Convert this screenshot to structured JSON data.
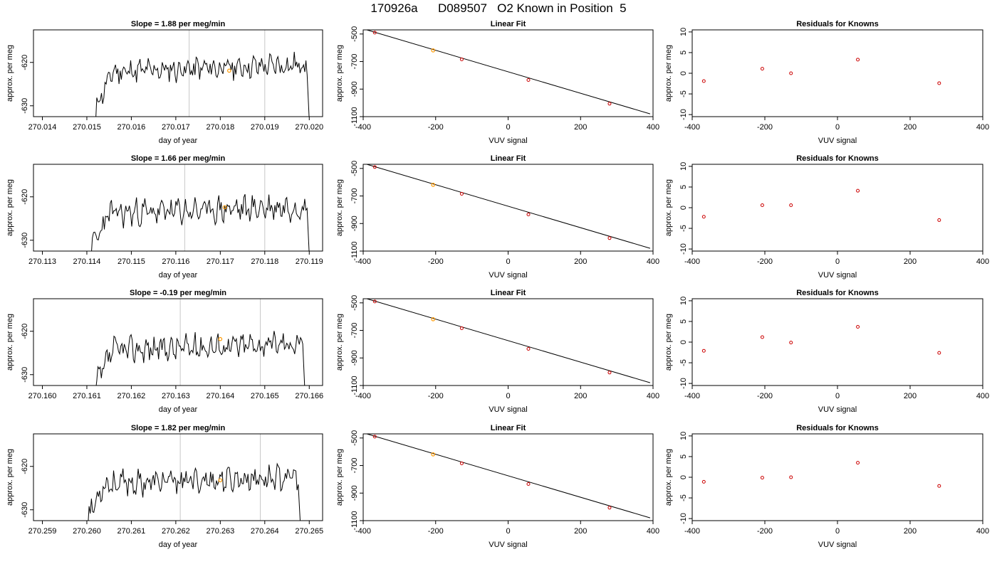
{
  "page_title": "170926a      D089507   O2 Known in Position  5",
  "colors": {
    "line": "#000000",
    "known_point": "#cc0000",
    "highlight_point": "#ff9900",
    "time_marker": "#c8c8c8"
  },
  "chart_data": [
    {
      "type": "line",
      "row": 1,
      "panel": "time-series",
      "title": "Slope =  1.88  per meg/min",
      "xlabel": "day of year",
      "ylabel": "approx. per meg",
      "xlim": [
        270.0138,
        270.0203
      ],
      "ylim": [
        -632.5,
        -612.5
      ],
      "xticks": [
        "270.014",
        "270.015",
        "270.016",
        "270.017",
        "270.018",
        "270.019",
        "270.020"
      ],
      "xtick_values": [
        270.014,
        270.015,
        270.016,
        270.017,
        270.018,
        270.019,
        270.02
      ],
      "yticks": [
        "-620",
        "-630"
      ],
      "ytick_values": [
        -620,
        -630
      ],
      "signal_range": [
        270.0152,
        270.02
      ],
      "signal_base": -622.3,
      "signal_amp": 2.6,
      "seed": 11,
      "vlines": [
        270.0173,
        270.019
      ],
      "highlight": {
        "x": 270.0182,
        "y": -621.9
      }
    },
    {
      "type": "line",
      "row": 1,
      "panel": "linear-fit",
      "title": "Linear Fit",
      "xlabel": "VUV signal",
      "ylabel": "approx. per meg",
      "xlim": [
        -400,
        400
      ],
      "ylim": [
        -1100,
        -470
      ],
      "xticks": [
        "-400",
        "-200",
        "0",
        "200",
        "400"
      ],
      "xtick_values": [
        -400,
        -200,
        0,
        200,
        400
      ],
      "yticks": [
        "-500",
        "-700",
        "-900",
        "-1100"
      ],
      "ytick_values": [
        -500,
        -700,
        -900,
        -1100
      ],
      "points": [
        {
          "x": -368,
          "y": -490
        },
        {
          "x": -128,
          "y": -684
        },
        {
          "x": 56,
          "y": -834
        },
        {
          "x": 280,
          "y": -1006
        }
      ],
      "highlight": {
        "x": -207,
        "y": -619
      },
      "fit_line": [
        {
          "x": -390,
          "y": -470
        },
        {
          "x": 392,
          "y": -1080
        }
      ]
    },
    {
      "type": "scatter",
      "row": 1,
      "panel": "residuals",
      "title": "Residuals for Knowns",
      "xlabel": "VUV signal",
      "ylabel": "approx. per meg",
      "xlim": [
        -400,
        400
      ],
      "ylim": [
        -10.5,
        10.5
      ],
      "xticks": [
        "-400",
        "-200",
        "0",
        "200",
        "400"
      ],
      "xtick_values": [
        -400,
        -200,
        0,
        200,
        400
      ],
      "yticks": [
        "-10",
        "-5",
        "0",
        "5",
        "10"
      ],
      "ytick_values": [
        -10,
        -5,
        0,
        5,
        10
      ],
      "points": [
        {
          "x": -368,
          "y": -1.9
        },
        {
          "x": -207,
          "y": 1.1
        },
        {
          "x": -128,
          "y": 0.0
        },
        {
          "x": 56,
          "y": 3.3
        },
        {
          "x": 280,
          "y": -2.4
        }
      ]
    },
    {
      "type": "line",
      "row": 2,
      "panel": "time-series",
      "title": "Slope =  1.66  per meg/min",
      "xlabel": "day of year",
      "ylabel": "approx. per meg",
      "xlim": [
        270.1128,
        270.1193
      ],
      "ylim": [
        -632.5,
        -612.5
      ],
      "xticks": [
        "270.113",
        "270.114",
        "270.115",
        "270.116",
        "270.117",
        "270.118",
        "270.119"
      ],
      "xtick_values": [
        270.113,
        270.114,
        270.115,
        270.116,
        270.117,
        270.118,
        270.119
      ],
      "yticks": [
        "-620",
        "-630"
      ],
      "ytick_values": [
        -620,
        -630
      ],
      "signal_range": [
        270.1141,
        270.119
      ],
      "signal_base": -624.0,
      "signal_amp": 2.9,
      "seed": 23,
      "vlines": [
        270.1162,
        270.118
      ],
      "highlight": {
        "x": 270.1171,
        "y": -622.4
      }
    },
    {
      "type": "line",
      "row": 2,
      "panel": "linear-fit",
      "title": "Linear Fit",
      "xlabel": "VUV signal",
      "ylabel": "approx. per meg",
      "xlim": [
        -400,
        400
      ],
      "ylim": [
        -1100,
        -470
      ],
      "xticks": [
        "-400",
        "-200",
        "0",
        "200",
        "400"
      ],
      "xtick_values": [
        -400,
        -200,
        0,
        200,
        400
      ],
      "yticks": [
        "-500",
        "-700",
        "-900",
        "-1100"
      ],
      "ytick_values": [
        -500,
        -700,
        -900,
        -1100
      ],
      "points": [
        {
          "x": -368,
          "y": -490
        },
        {
          "x": -128,
          "y": -684
        },
        {
          "x": 56,
          "y": -834
        },
        {
          "x": 280,
          "y": -1006
        }
      ],
      "highlight": {
        "x": -207,
        "y": -619
      },
      "fit_line": [
        {
          "x": -390,
          "y": -470
        },
        {
          "x": 392,
          "y": -1080
        }
      ]
    },
    {
      "type": "scatter",
      "row": 2,
      "panel": "residuals",
      "title": "Residuals for Knowns",
      "xlabel": "VUV signal",
      "ylabel": "approx. per meg",
      "xlim": [
        -400,
        400
      ],
      "ylim": [
        -10.5,
        10.5
      ],
      "xticks": [
        "-400",
        "-200",
        "0",
        "200",
        "400"
      ],
      "xtick_values": [
        -400,
        -200,
        0,
        200,
        400
      ],
      "yticks": [
        "-10",
        "-5",
        "0",
        "5",
        "10"
      ],
      "ytick_values": [
        -10,
        -5,
        0,
        5,
        10
      ],
      "points": [
        {
          "x": -368,
          "y": -2.2
        },
        {
          "x": -207,
          "y": 0.6
        },
        {
          "x": -128,
          "y": 0.6
        },
        {
          "x": 56,
          "y": 4.1
        },
        {
          "x": 280,
          "y": -3.0
        }
      ]
    },
    {
      "type": "line",
      "row": 3,
      "panel": "time-series",
      "title": "Slope =  -0.19  per meg/min",
      "xlabel": "day of year",
      "ylabel": "approx. per meg",
      "xlim": [
        270.1598,
        270.1663
      ],
      "ylim": [
        -632.5,
        -612.5
      ],
      "xticks": [
        "270.160",
        "270.161",
        "270.162",
        "270.163",
        "270.164",
        "270.165",
        "270.166"
      ],
      "xtick_values": [
        270.16,
        270.161,
        270.162,
        270.163,
        270.164,
        270.165,
        270.166
      ],
      "yticks": [
        "-620",
        "-630"
      ],
      "ytick_values": [
        -620,
        -630
      ],
      "signal_range": [
        270.1612,
        270.1659
      ],
      "signal_base": -624.5,
      "signal_amp": 2.8,
      "seed": 37,
      "vlines": [
        270.1631,
        270.1649
      ],
      "highlight": {
        "x": 270.164,
        "y": -621.8
      }
    },
    {
      "type": "line",
      "row": 3,
      "panel": "linear-fit",
      "title": "Linear Fit",
      "xlabel": "VUV signal",
      "ylabel": "approx. per meg",
      "xlim": [
        -400,
        400
      ],
      "ylim": [
        -1100,
        -470
      ],
      "xticks": [
        "-400",
        "-200",
        "0",
        "200",
        "400"
      ],
      "xtick_values": [
        -400,
        -200,
        0,
        200,
        400
      ],
      "yticks": [
        "-500",
        "-700",
        "-900",
        "-1100"
      ],
      "ytick_values": [
        -500,
        -700,
        -900,
        -1100
      ],
      "points": [
        {
          "x": -368,
          "y": -490
        },
        {
          "x": -128,
          "y": -684
        },
        {
          "x": 56,
          "y": -834
        },
        {
          "x": 280,
          "y": -1006
        }
      ],
      "highlight": {
        "x": -207,
        "y": -619
      },
      "fit_line": [
        {
          "x": -390,
          "y": -470
        },
        {
          "x": 392,
          "y": -1080
        }
      ]
    },
    {
      "type": "scatter",
      "row": 3,
      "panel": "residuals",
      "title": "Residuals for Knowns",
      "xlabel": "VUV signal",
      "ylabel": "approx. per meg",
      "xlim": [
        -400,
        400
      ],
      "ylim": [
        -10.5,
        10.5
      ],
      "xticks": [
        "-400",
        "-200",
        "0",
        "200",
        "400"
      ],
      "xtick_values": [
        -400,
        -200,
        0,
        200,
        400
      ],
      "yticks": [
        "-10",
        "-5",
        "0",
        "5",
        "10"
      ],
      "ytick_values": [
        -10,
        -5,
        0,
        5,
        10
      ],
      "points": [
        {
          "x": -368,
          "y": -2.1
        },
        {
          "x": -207,
          "y": 1.2
        },
        {
          "x": -128,
          "y": -0.1
        },
        {
          "x": 56,
          "y": 3.7
        },
        {
          "x": 280,
          "y": -2.6
        }
      ]
    },
    {
      "type": "line",
      "row": 4,
      "panel": "time-series",
      "title": "Slope =  1.82  per meg/min",
      "xlabel": "day of year",
      "ylabel": "approx. per meg",
      "xlim": [
        270.2588,
        270.2653
      ],
      "ylim": [
        -632.5,
        -612.5
      ],
      "xticks": [
        "270.259",
        "270.260",
        "270.261",
        "270.262",
        "270.263",
        "270.264",
        "270.265"
      ],
      "xtick_values": [
        270.259,
        270.26,
        270.261,
        270.262,
        270.263,
        270.264,
        270.265
      ],
      "yticks": [
        "-620",
        "-630"
      ],
      "ytick_values": [
        -620,
        -630
      ],
      "signal_range": [
        270.26,
        270.2648
      ],
      "signal_base": -624.2,
      "signal_amp": 2.7,
      "seed": 53,
      "vlines": [
        270.2621,
        270.2639
      ],
      "highlight": {
        "x": 270.263,
        "y": -623.2
      }
    },
    {
      "type": "line",
      "row": 4,
      "panel": "linear-fit",
      "title": "Linear Fit",
      "xlabel": "VUV signal",
      "ylabel": "approx. per meg",
      "xlim": [
        -400,
        400
      ],
      "ylim": [
        -1100,
        -470
      ],
      "xticks": [
        "-400",
        "-200",
        "0",
        "200",
        "400"
      ],
      "xtick_values": [
        -400,
        -200,
        0,
        200,
        400
      ],
      "yticks": [
        "-500",
        "-700",
        "-900",
        "-1100"
      ],
      "ytick_values": [
        -500,
        -700,
        -900,
        -1100
      ],
      "points": [
        {
          "x": -368,
          "y": -490
        },
        {
          "x": -128,
          "y": -684
        },
        {
          "x": 56,
          "y": -834
        },
        {
          "x": 280,
          "y": -1006
        }
      ],
      "highlight": {
        "x": -207,
        "y": -619
      },
      "fit_line": [
        {
          "x": -390,
          "y": -470
        },
        {
          "x": 392,
          "y": -1080
        }
      ]
    },
    {
      "type": "scatter",
      "row": 4,
      "panel": "residuals",
      "title": "Residuals for Knowns",
      "xlabel": "VUV signal",
      "ylabel": "approx. per meg",
      "xlim": [
        -400,
        400
      ],
      "ylim": [
        -10.5,
        10.5
      ],
      "xticks": [
        "-400",
        "-200",
        "0",
        "200",
        "400"
      ],
      "xtick_values": [
        -400,
        -200,
        0,
        200,
        400
      ],
      "yticks": [
        "-10",
        "-5",
        "0",
        "5",
        "10"
      ],
      "ytick_values": [
        -10,
        -5,
        0,
        5,
        10
      ],
      "points": [
        {
          "x": -368,
          "y": -1.1
        },
        {
          "x": -207,
          "y": -0.1
        },
        {
          "x": -128,
          "y": 0.0
        },
        {
          "x": 56,
          "y": 3.5
        },
        {
          "x": 280,
          "y": -2.1
        }
      ]
    }
  ]
}
